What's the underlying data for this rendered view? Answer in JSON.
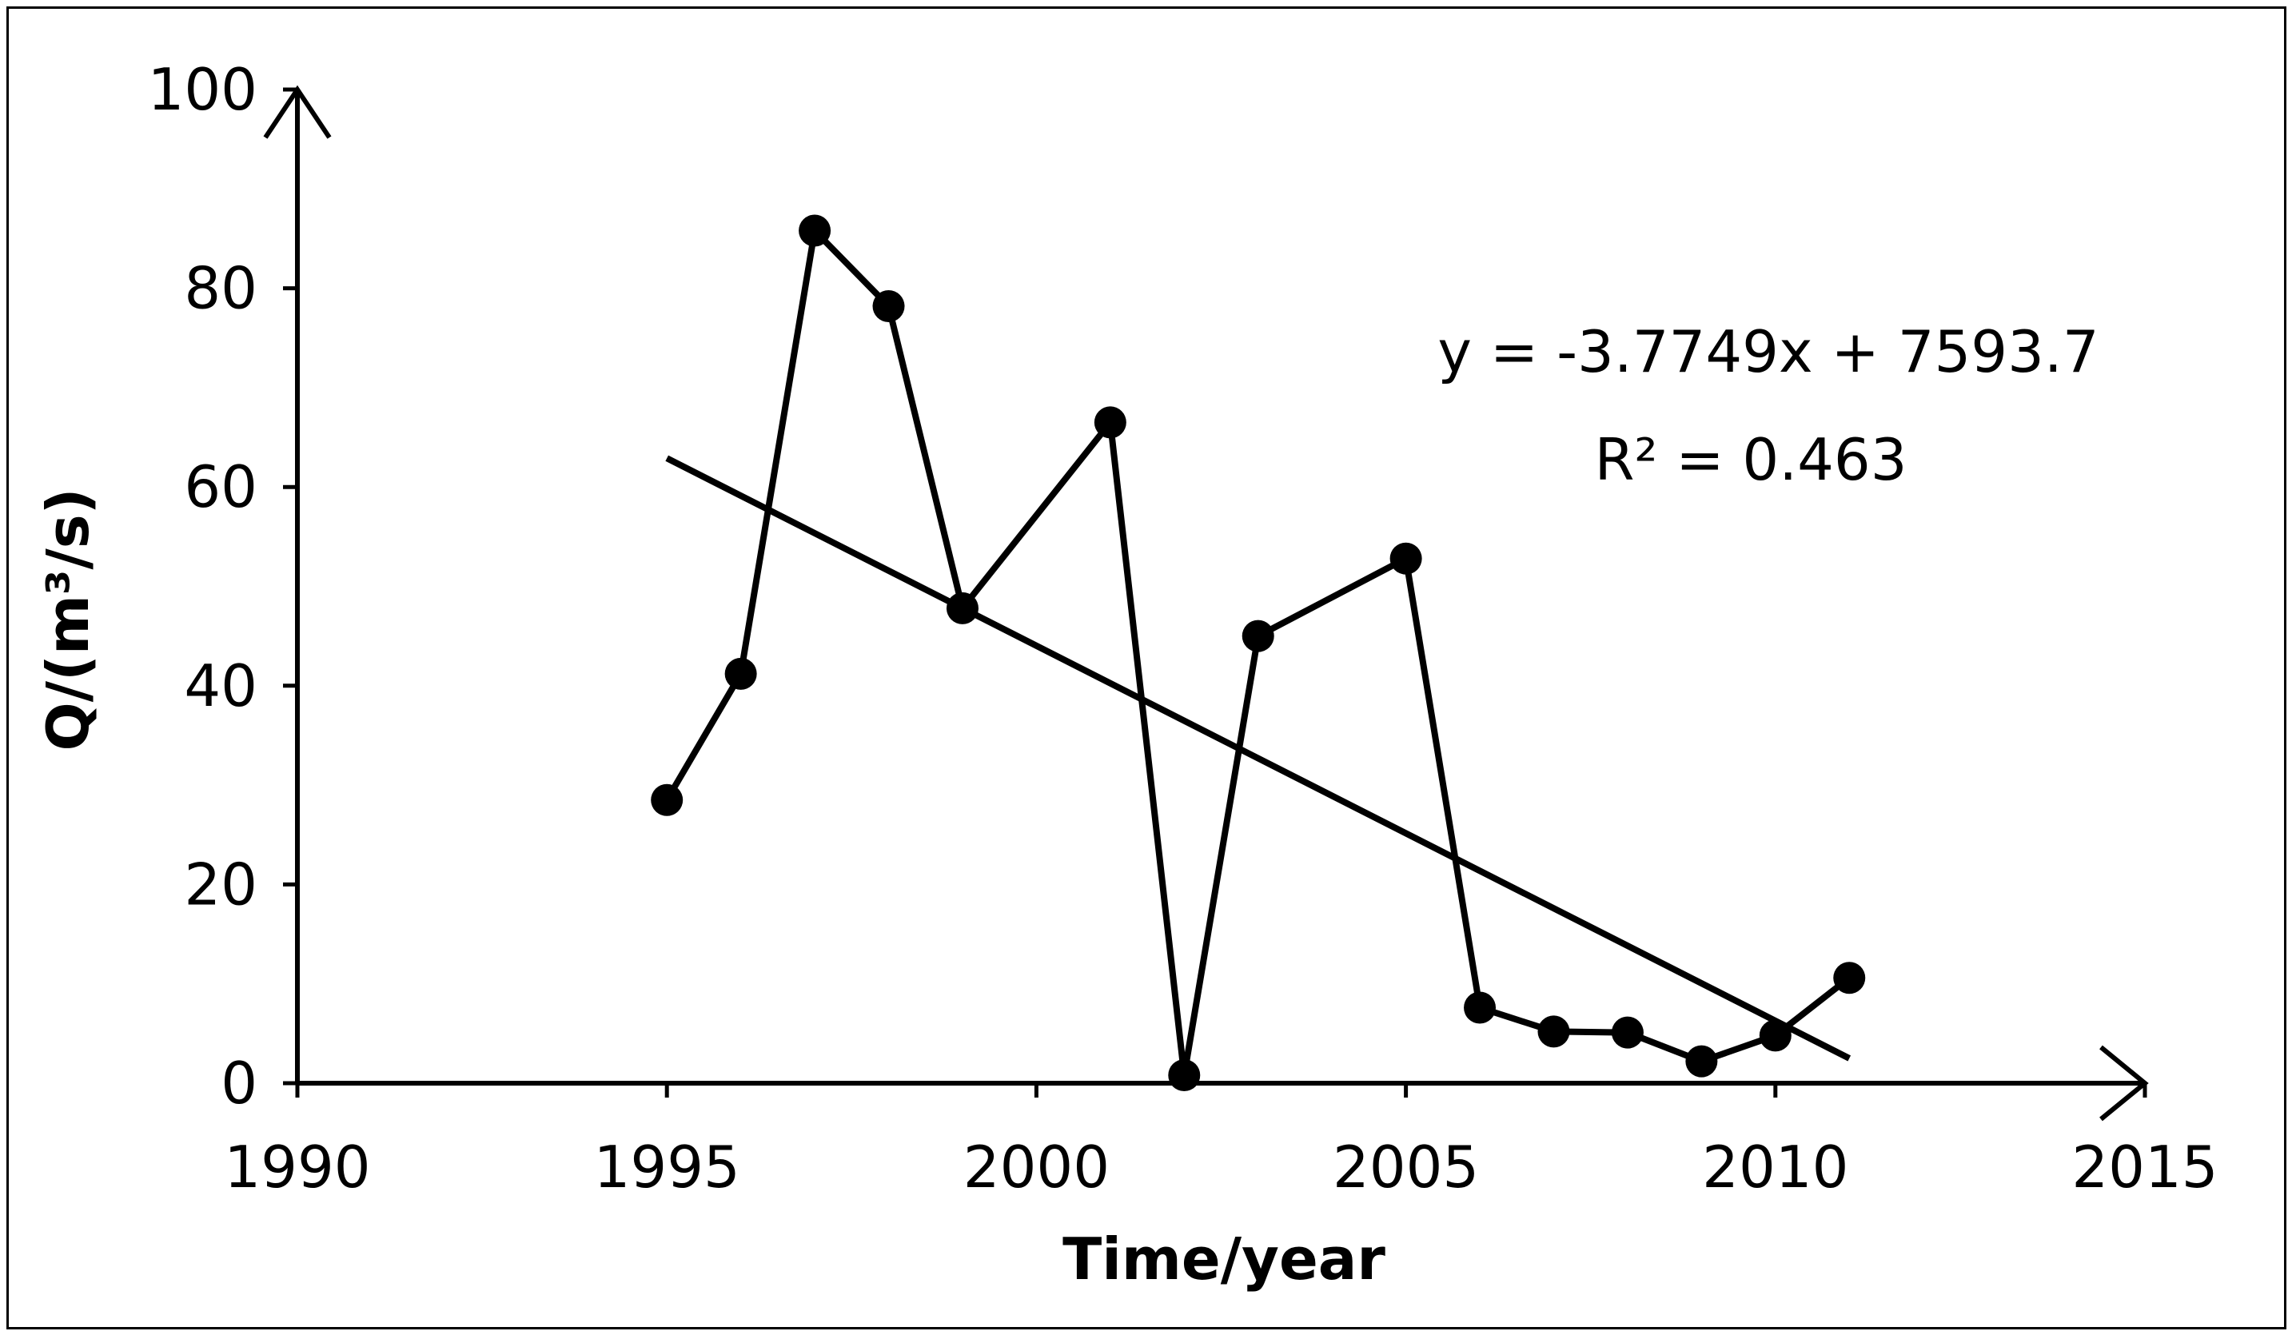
{
  "chart_data": {
    "type": "line",
    "title": "",
    "xlabel": "Time/year",
    "ylabel": "Q/(m³/s)",
    "xlim": [
      1990,
      2015
    ],
    "ylim": [
      0,
      100
    ],
    "xticks": [
      1990,
      1995,
      2000,
      2005,
      2010,
      2015
    ],
    "yticks": [
      0,
      20,
      40,
      60,
      80,
      100
    ],
    "grid": false,
    "legend": "none",
    "series": [
      {
        "x": [
          1995,
          1996,
          1997,
          1998,
          1999,
          2001,
          2002,
          2003,
          2005,
          2006,
          2007,
          2008,
          2009,
          2010,
          2011
        ],
        "values": [
          28.5,
          41.2,
          85.8,
          78.2,
          47.8,
          66.5,
          0.8,
          45.0,
          52.8,
          7.6,
          5.2,
          5.1,
          2.2,
          4.8,
          10.6
        ],
        "color": "#000000"
      }
    ],
    "trendline": {
      "x": [
        1995,
        2011
      ],
      "values": [
        62.9,
        2.5
      ],
      "color": "#000000"
    },
    "annotations": {
      "equation": "y = -3.7749x + 7593.7",
      "r_squared": "R² = 0.463"
    }
  }
}
